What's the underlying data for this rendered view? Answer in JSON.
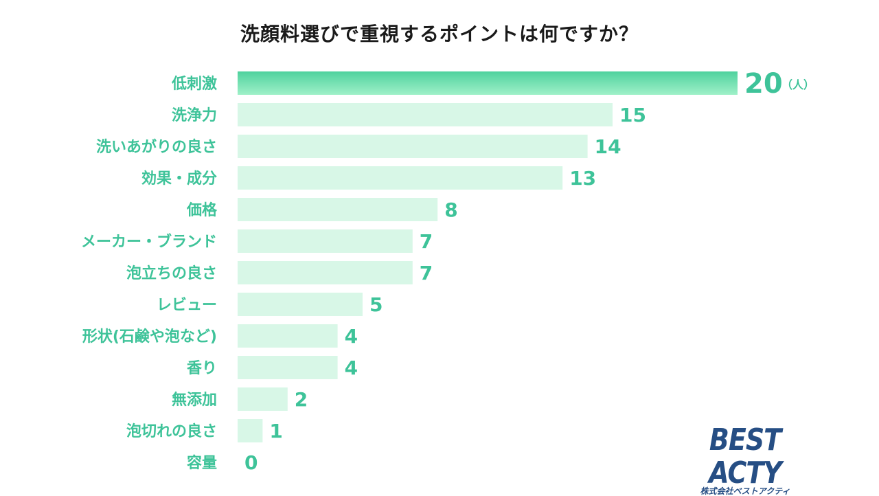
{
  "chart_data": {
    "type": "bar",
    "orientation": "horizontal",
    "title": "洗顔料選びで重視するポイントは何ですか？",
    "categories": [
      "低刺激",
      "洗浄力",
      "洗いあがりの良さ",
      "効果・成分",
      "価格",
      "メーカー・ブランド",
      "泡立ちの良さ",
      "レビュー",
      "形状(石鹸や泡など)",
      "香り",
      "無添加",
      "泡切れの良さ",
      "容量"
    ],
    "values": [
      20,
      15,
      14,
      13,
      8,
      7,
      7,
      5,
      4,
      4,
      2,
      1,
      0
    ],
    "unit": "（人）",
    "xlim": [
      0,
      20
    ],
    "grid": false,
    "colors": {
      "highlight_start": "#4fd29e",
      "highlight_end": "#9ff0c8",
      "bar": "#d8f7e7",
      "label": "#3ec399"
    }
  },
  "logo": {
    "main": "BEST ACTY",
    "sub": "株式会社ベストアクティ"
  }
}
